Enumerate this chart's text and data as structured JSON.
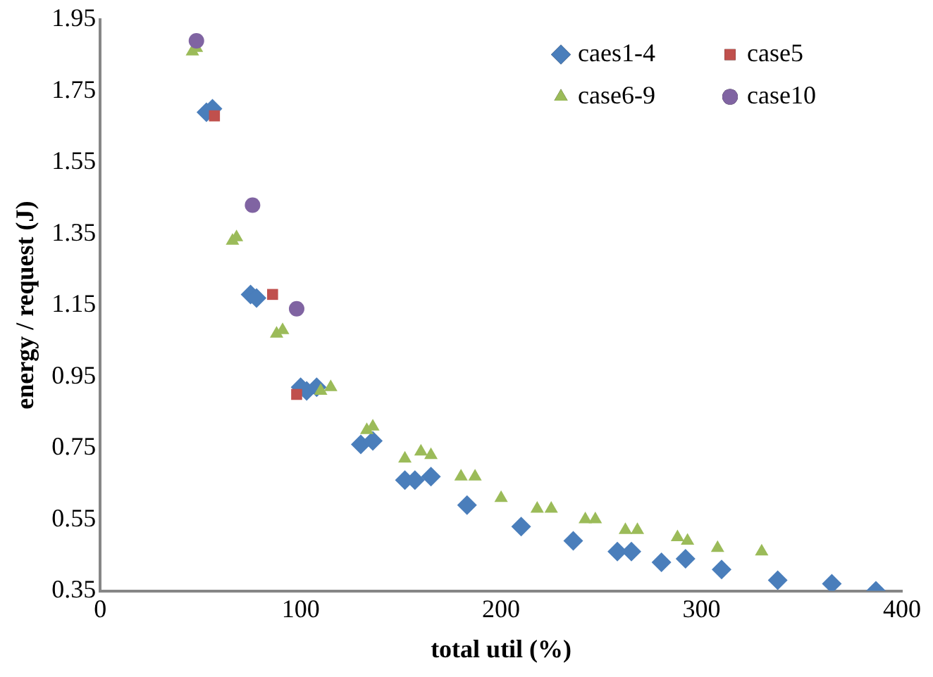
{
  "chart_data": {
    "type": "scatter",
    "xlabel": "total util (%)",
    "ylabel": "energy / request (J)",
    "xlim": [
      0,
      400
    ],
    "xticks": [
      0,
      100,
      200,
      300,
      400
    ],
    "ylim": [
      0.35,
      1.95
    ],
    "yticks": [
      {
        "value": 0.35,
        "label": "0.35"
      },
      {
        "value": 0.55,
        "label": "0.55"
      },
      {
        "value": 0.75,
        "label": "0.75"
      },
      {
        "value": 0.95,
        "label": "0.95"
      },
      {
        "value": 1.15,
        "label": "1.15"
      },
      {
        "value": 1.35,
        "label": "1.35"
      },
      {
        "value": 1.55,
        "label": "1.55"
      },
      {
        "value": 1.75,
        "label": "1.75"
      },
      {
        "value": 1.95,
        "label": "1.95"
      }
    ],
    "grid": false,
    "legend": "top right",
    "series": [
      {
        "name": "caes1-4",
        "color": "#4a7ebb",
        "marker": "diamond",
        "x": [
          53,
          56,
          75,
          78,
          100,
          103,
          108,
          130,
          136,
          152,
          157,
          165,
          183,
          210,
          236,
          258,
          265,
          280,
          292,
          310,
          338,
          365,
          387
        ],
        "values": [
          1.69,
          1.7,
          1.18,
          1.17,
          0.92,
          0.91,
          0.92,
          0.76,
          0.77,
          0.66,
          0.66,
          0.67,
          0.59,
          0.53,
          0.49,
          0.46,
          0.46,
          0.43,
          0.44,
          0.41,
          0.38,
          0.37,
          0.35
        ]
      },
      {
        "name": "case5",
        "color": "#c0504d",
        "marker": "square",
        "x": [
          57,
          86,
          98
        ],
        "values": [
          1.68,
          1.18,
          0.9
        ]
      },
      {
        "name": "case6-9",
        "color": "#9bbb59",
        "marker": "triangle",
        "x": [
          46,
          48,
          66,
          68,
          88,
          91,
          110,
          115,
          133,
          136,
          152,
          160,
          165,
          180,
          187,
          200,
          218,
          225,
          242,
          247,
          262,
          268,
          288,
          293,
          308,
          330
        ],
        "values": [
          1.86,
          1.87,
          1.33,
          1.34,
          1.07,
          1.08,
          0.91,
          0.92,
          0.8,
          0.81,
          0.72,
          0.74,
          0.73,
          0.67,
          0.67,
          0.61,
          0.58,
          0.58,
          0.55,
          0.55,
          0.52,
          0.52,
          0.5,
          0.49,
          0.47,
          0.46
        ]
      },
      {
        "name": "case10",
        "color": "#8064a2",
        "marker": "circle",
        "x": [
          48,
          76,
          98
        ],
        "values": [
          1.89,
          1.43,
          1.14
        ]
      }
    ]
  }
}
